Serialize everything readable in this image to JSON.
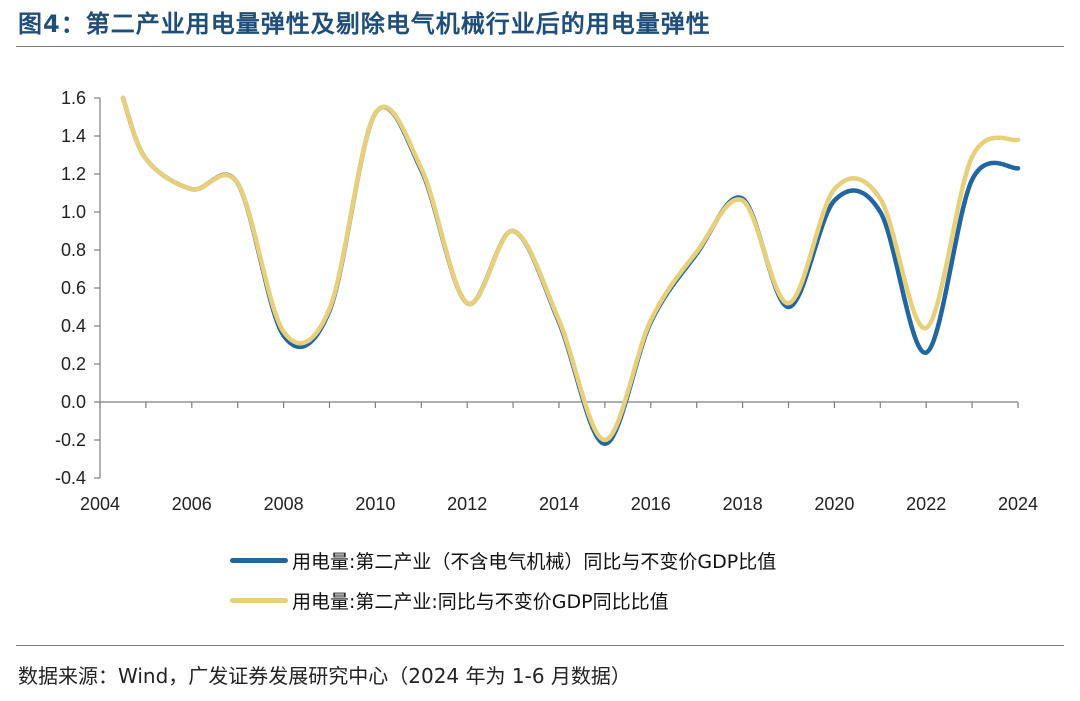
{
  "title": "图4：第二产业用电量弹性及剔除电气机械行业后的用电量弹性",
  "source": "数据来源：Wind，广发证券发展研究中心（2024 年为 1-6 月数据）",
  "colors": {
    "title": "#1f4e79",
    "series1": "#2166a0",
    "series2": "#e8cf7a"
  },
  "chart_data": {
    "type": "line",
    "title": "",
    "xlabel": "",
    "ylabel": "",
    "xlim": [
      2004,
      2024
    ],
    "ylim": [
      -0.4,
      1.6
    ],
    "y_ticks": [
      "1.6",
      "1.4",
      "1.2",
      "1.0",
      "0.8",
      "0.6",
      "0.4",
      "0.2",
      "0.0",
      "-0.2",
      "-0.4"
    ],
    "x_ticks": [
      "2004",
      "2006",
      "2008",
      "2010",
      "2012",
      "2014",
      "2016",
      "2018",
      "2020",
      "2022",
      "2024"
    ],
    "legend_position": "bottom",
    "grid": false,
    "x": [
      2004.5,
      2005,
      2006,
      2007,
      2008,
      2009,
      2010,
      2011,
      2012,
      2013,
      2014,
      2015,
      2016,
      2017,
      2018,
      2019,
      2020,
      2021,
      2022,
      2023,
      2024
    ],
    "series": [
      {
        "name": "用电量:第二产业（不含电气机械）同比与不变价GDP比值",
        "color": "#2166a0",
        "values": [
          1.6,
          1.28,
          1.12,
          1.15,
          0.35,
          0.48,
          1.52,
          1.22,
          0.52,
          0.9,
          0.42,
          -0.22,
          0.42,
          0.78,
          1.07,
          0.5,
          1.06,
          1.0,
          0.26,
          1.17,
          1.23
        ]
      },
      {
        "name": "用电量:第二产业:同比与不变价GDP同比比值",
        "color": "#e8cf7a",
        "values": [
          1.6,
          1.28,
          1.12,
          1.15,
          0.37,
          0.49,
          1.52,
          1.23,
          0.52,
          0.9,
          0.43,
          -0.2,
          0.43,
          0.79,
          1.06,
          0.52,
          1.12,
          1.07,
          0.39,
          1.29,
          1.38
        ]
      }
    ]
  }
}
